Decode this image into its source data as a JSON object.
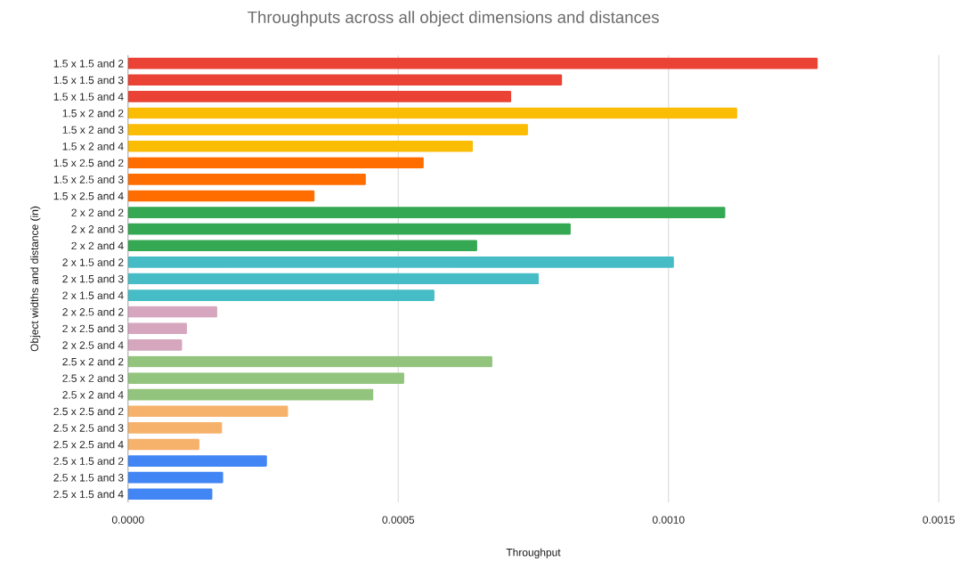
{
  "chart_data": {
    "type": "bar",
    "orientation": "horizontal",
    "title": "Throughputs across all object dimensions and distances",
    "xlabel": "Throughput",
    "ylabel": "Object widths and distance (in)",
    "categories": [
      "1.5 x 1.5 and 2",
      "1.5 x 1.5 and 3",
      "1.5 x 1.5 and 4",
      "1.5 x 2 and 2",
      "1.5 x 2 and 3",
      "1.5 x 2 and 4",
      "1.5 x 2.5 and 2",
      "1.5 x 2.5 and 3",
      "1.5 x 2.5 and 4",
      "2 x 2 and 2",
      "2 x 2 and 3",
      "2 x 2 and 4",
      "2 x 1.5 and 2",
      "2 x 1.5 and 3",
      "2 x 1.5 and 4",
      "2 x 2.5 and 2",
      "2 x 2.5 and 3",
      "2 x 2.5 and 4",
      "2.5 x 2 and 2",
      "2.5 x 2 and 3",
      "2.5 x 2 and 4",
      "2.5 x 2.5 and 2",
      "2.5 x 2.5 and 3",
      "2.5 x 2.5 and 4",
      "2.5 x 1.5 and 2",
      "2.5 x 1.5 and 3",
      "2.5 x 1.5 and 4"
    ],
    "values": [
      0.001276,
      0.000803,
      0.000709,
      0.001127,
      0.00074,
      0.000638,
      0.000547,
      0.00044,
      0.000345,
      0.001105,
      0.000819,
      0.000646,
      0.00101,
      0.00076,
      0.000567,
      0.000165,
      0.000109,
      0.0001,
      0.000674,
      0.000511,
      0.000454,
      0.000296,
      0.000174,
      0.000132,
      0.000257,
      0.000176,
      0.000156
    ],
    "colors": [
      "#ea4335",
      "#ea4335",
      "#ea4335",
      "#fbbc04",
      "#fbbc04",
      "#fbbc04",
      "#ff6d01",
      "#ff6d01",
      "#ff6d01",
      "#34a853",
      "#34a853",
      "#34a853",
      "#46bdc6",
      "#46bdc6",
      "#46bdc6",
      "#d5a6bd",
      "#d5a6bd",
      "#d5a6bd",
      "#93c47d",
      "#93c47d",
      "#93c47d",
      "#f6b26b",
      "#f6b26b",
      "#f6b26b",
      "#4285f4",
      "#4285f4",
      "#4285f4"
    ],
    "xlim": [
      0,
      0.0015
    ],
    "xticks": [
      {
        "value": 0,
        "label": "0.0000"
      },
      0.0005,
      {
        "value": 0.001,
        "label": "0.0010"
      },
      0.0015
    ],
    "grid": "x"
  }
}
